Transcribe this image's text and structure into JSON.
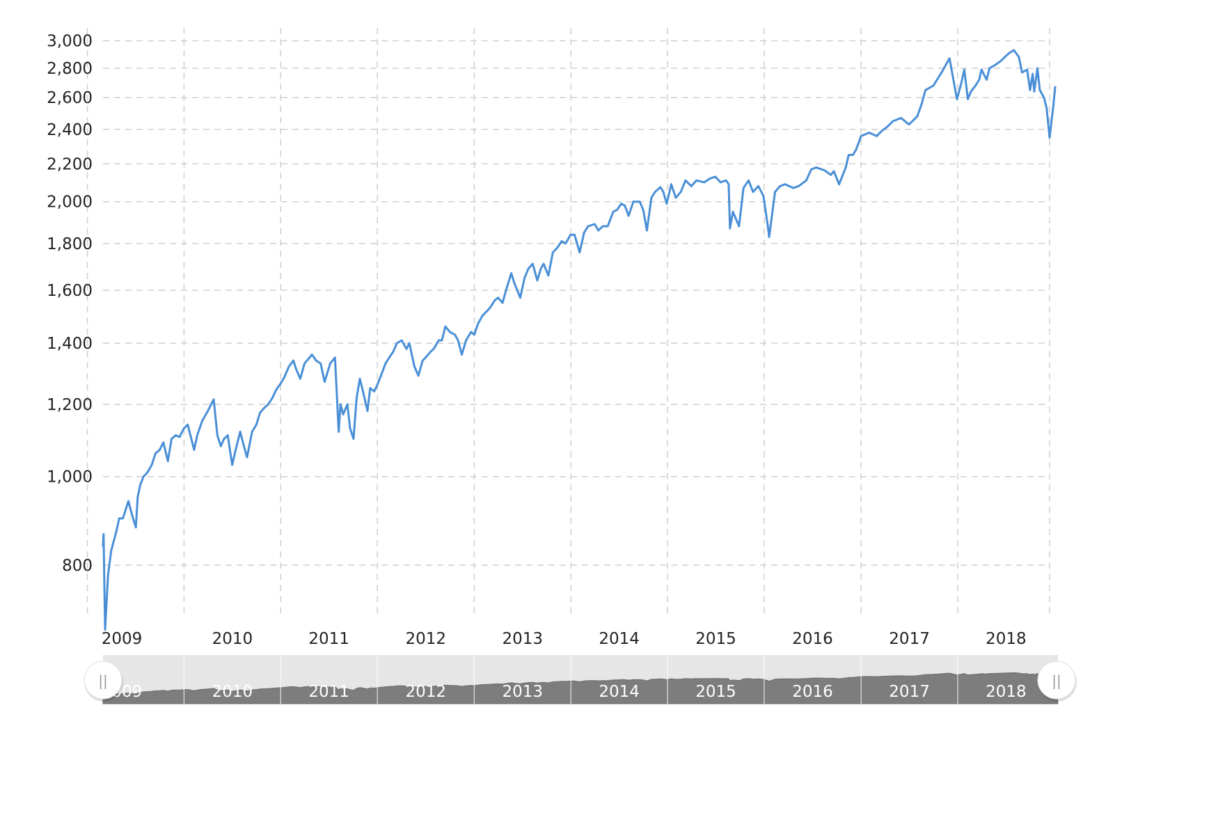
{
  "colors": {
    "line": "#4a8fd6",
    "grid": "#cfcfcf",
    "navigator_bg": "#e6e6e6",
    "navigator_fill": "#7d7d7d",
    "text": "#222222"
  },
  "chart_data": {
    "type": "line",
    "title": "",
    "xlabel": "",
    "ylabel": "",
    "y_scale": "log",
    "ylim": [
      700,
      3100
    ],
    "xlim": [
      "2009-03-01",
      "2019-01-04"
    ],
    "grid": true,
    "legend": "none",
    "yticks": [
      800,
      1000,
      1200,
      1400,
      1600,
      1800,
      2000,
      2200,
      2400,
      2600,
      2800,
      3000
    ],
    "ytick_labels": [
      "800",
      "1,000",
      "1,200",
      "1,400",
      "1,600",
      "1,800",
      "2,000",
      "2,200",
      "2,400",
      "2,600",
      "2,800",
      "3,000"
    ],
    "xticks": [
      "2009",
      "2010",
      "2011",
      "2012",
      "2013",
      "2014",
      "2015",
      "2016",
      "2017",
      "2018"
    ],
    "series": [
      {
        "name": "",
        "x": [
          "2009-03-01",
          "2009-03-03",
          "2009-03-09",
          "2009-03-20",
          "2009-04-01",
          "2009-04-20",
          "2009-05-01",
          "2009-05-15",
          "2009-06-05",
          "2009-06-20",
          "2009-07-03",
          "2009-07-10",
          "2009-07-20",
          "2009-08-01",
          "2009-08-15",
          "2009-09-01",
          "2009-09-15",
          "2009-10-01",
          "2009-10-15",
          "2009-11-01",
          "2009-11-15",
          "2009-12-01",
          "2009-12-15",
          "2010-01-01",
          "2010-01-15",
          "2010-02-08",
          "2010-02-20",
          "2010-03-10",
          "2010-04-01",
          "2010-04-23",
          "2010-05-07",
          "2010-05-20",
          "2010-06-01",
          "2010-06-15",
          "2010-07-02",
          "2010-07-15",
          "2010-08-01",
          "2010-08-15",
          "2010-08-27",
          "2010-09-15",
          "2010-10-01",
          "2010-10-15",
          "2010-11-01",
          "2010-11-15",
          "2010-12-01",
          "2010-12-15",
          "2011-01-01",
          "2011-01-15",
          "2011-02-01",
          "2011-02-18",
          "2011-03-01",
          "2011-03-16",
          "2011-04-01",
          "2011-04-29",
          "2011-05-15",
          "2011-06-01",
          "2011-06-16",
          "2011-07-07",
          "2011-07-25",
          "2011-08-08",
          "2011-08-15",
          "2011-08-25",
          "2011-09-10",
          "2011-09-20",
          "2011-10-03",
          "2011-10-15",
          "2011-10-27",
          "2011-11-05",
          "2011-11-25",
          "2011-12-05",
          "2011-12-20",
          "2012-01-01",
          "2012-01-15",
          "2012-02-01",
          "2012-02-15",
          "2012-03-01",
          "2012-03-15",
          "2012-04-02",
          "2012-04-20",
          "2012-05-01",
          "2012-05-20",
          "2012-06-04",
          "2012-06-20",
          "2012-07-01",
          "2012-07-20",
          "2012-08-01",
          "2012-08-20",
          "2012-09-01",
          "2012-09-14",
          "2012-10-01",
          "2012-10-20",
          "2012-11-01",
          "2012-11-15",
          "2012-12-01",
          "2012-12-20",
          "2013-01-01",
          "2013-01-15",
          "2013-02-01",
          "2013-02-20",
          "2013-03-01",
          "2013-03-20",
          "2013-04-01",
          "2013-04-18",
          "2013-05-01",
          "2013-05-21",
          "2013-06-01",
          "2013-06-24",
          "2013-07-10",
          "2013-07-25",
          "2013-08-10",
          "2013-08-27",
          "2013-09-10",
          "2013-09-20",
          "2013-10-08",
          "2013-10-25",
          "2013-11-10",
          "2013-11-27",
          "2013-12-12",
          "2013-12-31",
          "2014-01-15",
          "2014-02-03",
          "2014-02-20",
          "2014-03-07",
          "2014-04-01",
          "2014-04-15",
          "2014-05-01",
          "2014-05-20",
          "2014-06-10",
          "2014-06-25",
          "2014-07-10",
          "2014-07-24",
          "2014-08-07",
          "2014-08-25",
          "2014-09-18",
          "2014-10-01",
          "2014-10-15",
          "2014-11-01",
          "2014-11-15",
          "2014-12-05",
          "2014-12-16",
          "2014-12-29",
          "2015-01-15",
          "2015-02-01",
          "2015-02-20",
          "2015-03-10",
          "2015-04-01",
          "2015-04-20",
          "2015-05-20",
          "2015-06-10",
          "2015-07-01",
          "2015-07-20",
          "2015-08-10",
          "2015-08-20",
          "2015-08-25",
          "2015-09-05",
          "2015-09-28",
          "2015-10-15",
          "2015-11-03",
          "2015-11-20",
          "2015-12-10",
          "2015-12-29",
          "2016-01-15",
          "2016-01-20",
          "2016-02-11",
          "2016-03-01",
          "2016-03-20",
          "2016-04-20",
          "2016-05-10",
          "2016-06-08",
          "2016-06-27",
          "2016-07-15",
          "2016-08-15",
          "2016-09-09",
          "2016-09-20",
          "2016-10-10",
          "2016-11-04",
          "2016-11-15",
          "2016-12-01",
          "2016-12-13",
          "2017-01-01",
          "2017-02-01",
          "2017-03-01",
          "2017-03-20",
          "2017-04-13",
          "2017-05-01",
          "2017-06-01",
          "2017-07-01",
          "2017-08-01",
          "2017-08-18",
          "2017-09-01",
          "2017-10-01",
          "2017-11-01",
          "2017-12-01",
          "2017-12-29",
          "2018-01-15",
          "2018-01-26",
          "2018-02-08",
          "2018-02-20",
          "2018-03-09",
          "2018-03-23",
          "2018-04-01",
          "2018-04-20",
          "2018-05-01",
          "2018-05-20",
          "2018-06-12",
          "2018-06-28",
          "2018-07-15",
          "2018-08-01",
          "2018-08-20",
          "2018-09-01",
          "2018-09-20",
          "2018-10-01",
          "2018-10-11",
          "2018-10-17",
          "2018-10-29",
          "2018-11-07",
          "2018-11-23",
          "2018-12-03",
          "2018-12-14",
          "2018-12-24",
          "2018-12-27",
          "2019-01-04"
        ],
        "values": [
          840,
          865,
          680,
          780,
          830,
          870,
          900,
          900,
          940,
          905,
          880,
          950,
          980,
          1000,
          1010,
          1030,
          1060,
          1070,
          1090,
          1040,
          1100,
          1110,
          1105,
          1130,
          1140,
          1070,
          1110,
          1150,
          1180,
          1215,
          1110,
          1080,
          1100,
          1110,
          1030,
          1070,
          1120,
          1080,
          1050,
          1120,
          1140,
          1175,
          1190,
          1200,
          1220,
          1245,
          1265,
          1285,
          1320,
          1340,
          1310,
          1280,
          1330,
          1360,
          1340,
          1330,
          1270,
          1330,
          1350,
          1120,
          1200,
          1170,
          1200,
          1130,
          1100,
          1220,
          1280,
          1250,
          1180,
          1250,
          1240,
          1260,
          1290,
          1330,
          1350,
          1370,
          1400,
          1410,
          1380,
          1400,
          1320,
          1290,
          1340,
          1350,
          1370,
          1380,
          1410,
          1410,
          1460,
          1440,
          1430,
          1410,
          1360,
          1410,
          1440,
          1430,
          1470,
          1500,
          1520,
          1530,
          1560,
          1570,
          1550,
          1600,
          1670,
          1630,
          1570,
          1650,
          1690,
          1710,
          1640,
          1690,
          1710,
          1660,
          1760,
          1780,
          1810,
          1800,
          1840,
          1840,
          1760,
          1850,
          1880,
          1890,
          1860,
          1880,
          1880,
          1950,
          1960,
          1990,
          1980,
          1930,
          2000,
          2000,
          1960,
          1860,
          2020,
          2050,
          2075,
          2050,
          1990,
          2090,
          2020,
          2050,
          2110,
          2080,
          2110,
          2100,
          2120,
          2130,
          2100,
          2110,
          2090,
          1870,
          1950,
          1880,
          2070,
          2110,
          2050,
          2080,
          2030,
          1880,
          1830,
          2050,
          2080,
          2090,
          2070,
          2080,
          2110,
          2170,
          2180,
          2165,
          2140,
          2160,
          2090,
          2180,
          2250,
          2250,
          2280,
          2360,
          2380,
          2360,
          2390,
          2420,
          2450,
          2470,
          2430,
          2480,
          2560,
          2650,
          2680,
          2770,
          2870,
          2590,
          2700,
          2790,
          2590,
          2640,
          2680,
          2720,
          2790,
          2720,
          2800,
          2820,
          2850,
          2880,
          2910,
          2930,
          2880,
          2770,
          2790,
          2650,
          2760,
          2640,
          2800,
          2650,
          2600,
          2530,
          2350,
          2490,
          2530,
          2670
        ]
      }
    ]
  },
  "navigator": {
    "ticks": [
      "2009",
      "2010",
      "2011",
      "2012",
      "2013",
      "2014",
      "2015",
      "2016",
      "2017",
      "2018"
    ],
    "left_handle_glyph": "||",
    "right_handle_glyph": "||"
  }
}
